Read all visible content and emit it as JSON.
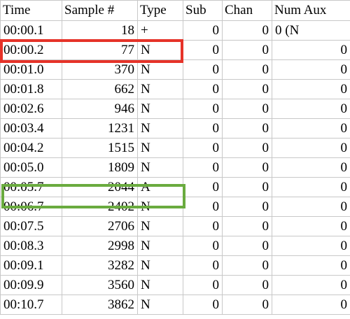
{
  "columns": [
    "Time",
    "Sample #",
    "Type",
    "Sub",
    "Chan",
    "Num Aux"
  ],
  "rows": [
    [
      "00:00.1",
      "18",
      "+",
      "0",
      "0",
      "0 (N"
    ],
    [
      "00:00.2",
      "77",
      "N",
      "0",
      "0",
      "0"
    ],
    [
      "00:01.0",
      "370",
      "N",
      "0",
      "0",
      "0"
    ],
    [
      "00:01.8",
      "662",
      "N",
      "0",
      "0",
      "0"
    ],
    [
      "00:02.6",
      "946",
      "N",
      "0",
      "0",
      "0"
    ],
    [
      "00:03.4",
      "1231",
      "N",
      "0",
      "0",
      "0"
    ],
    [
      "00:04.2",
      "1515",
      "N",
      "0",
      "0",
      "0"
    ],
    [
      "00:05.0",
      "1809",
      "N",
      "0",
      "0",
      "0"
    ],
    [
      "00:05.7",
      "2044",
      "A",
      "0",
      "0",
      "0"
    ],
    [
      "00:06.7",
      "2402",
      "N",
      "0",
      "0",
      "0"
    ],
    [
      "00:07.5",
      "2706",
      "N",
      "0",
      "0",
      "0"
    ],
    [
      "00:08.3",
      "2998",
      "N",
      "0",
      "0",
      "0"
    ],
    [
      "00:09.1",
      "3282",
      "N",
      "0",
      "0",
      "0"
    ],
    [
      "00:09.9",
      "3560",
      "N",
      "0",
      "0",
      "0"
    ],
    [
      "00:10.7",
      "3862",
      "N",
      "0",
      "0",
      "0"
    ]
  ],
  "highlights": {
    "red_row_index": 1,
    "green_row_index": 8,
    "red_color": "#e63329",
    "green_color": "#6aab3f"
  }
}
